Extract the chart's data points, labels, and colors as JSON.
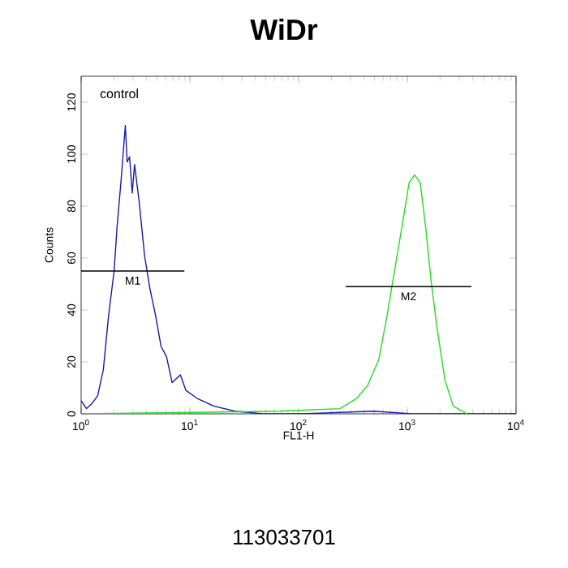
{
  "chart_data": {
    "type": "line",
    "title": "WiDr",
    "xlabel": "FL1-H",
    "ylabel": "Counts",
    "log": "x",
    "xlim": [
      1,
      10000
    ],
    "ylim": [
      0,
      130
    ],
    "xticks": [
      {
        "value": 1,
        "label": "10$^{0}$"
      },
      {
        "value": 10,
        "label": "10$^{1}$"
      },
      {
        "value": 100,
        "label": "10$^{2}$"
      },
      {
        "value": 1000,
        "label": "10$^{3}$"
      },
      {
        "value": 10000,
        "label": "10$^{4}$"
      }
    ],
    "yticks": [
      0,
      20,
      40,
      60,
      80,
      100,
      120
    ],
    "grid": false,
    "series": [
      {
        "name": "control",
        "color": "#1a1aa8",
        "x": [
          1,
          1.12,
          1.26,
          1.42,
          1.6,
          1.79,
          2.01,
          2.14,
          2.32,
          2.55,
          2.65,
          2.79,
          2.95,
          3.1,
          3.41,
          3.83,
          4.3,
          4.83,
          5.43,
          6.1,
          6.87,
          8.18,
          9.2,
          11.6,
          16.5,
          26,
          47,
          107,
          489,
          1100,
          10000
        ],
        "values": [
          5,
          2,
          4,
          7,
          17,
          38,
          55,
          72,
          89,
          111,
          97,
          99,
          85,
          96,
          82,
          61,
          48,
          38,
          26,
          22,
          12,
          15,
          9,
          6,
          3,
          1,
          0,
          0,
          1,
          0,
          0
        ]
      },
      {
        "color": "#22dd22",
        "x": [
          1,
          67,
          240,
          343,
          433,
          547,
          652,
          776,
          925,
          1038,
          1167,
          1312,
          1474,
          1657,
          1862,
          2218,
          2642,
          3540
        ],
        "values": [
          0,
          1,
          2,
          6,
          11,
          21,
          38,
          57,
          76,
          89,
          92,
          89,
          72,
          51,
          34,
          13,
          3,
          0
        ]
      },
      {
        "name": "M1",
        "color": "#000000",
        "x": [
          1,
          8.9
        ],
        "values": [
          55,
          55
        ]
      },
      {
        "name": "M2",
        "color": "#000000",
        "x": [
          271,
          3882
        ],
        "values": [
          49,
          49
        ]
      }
    ],
    "annotations": [
      "113033701"
    ]
  }
}
